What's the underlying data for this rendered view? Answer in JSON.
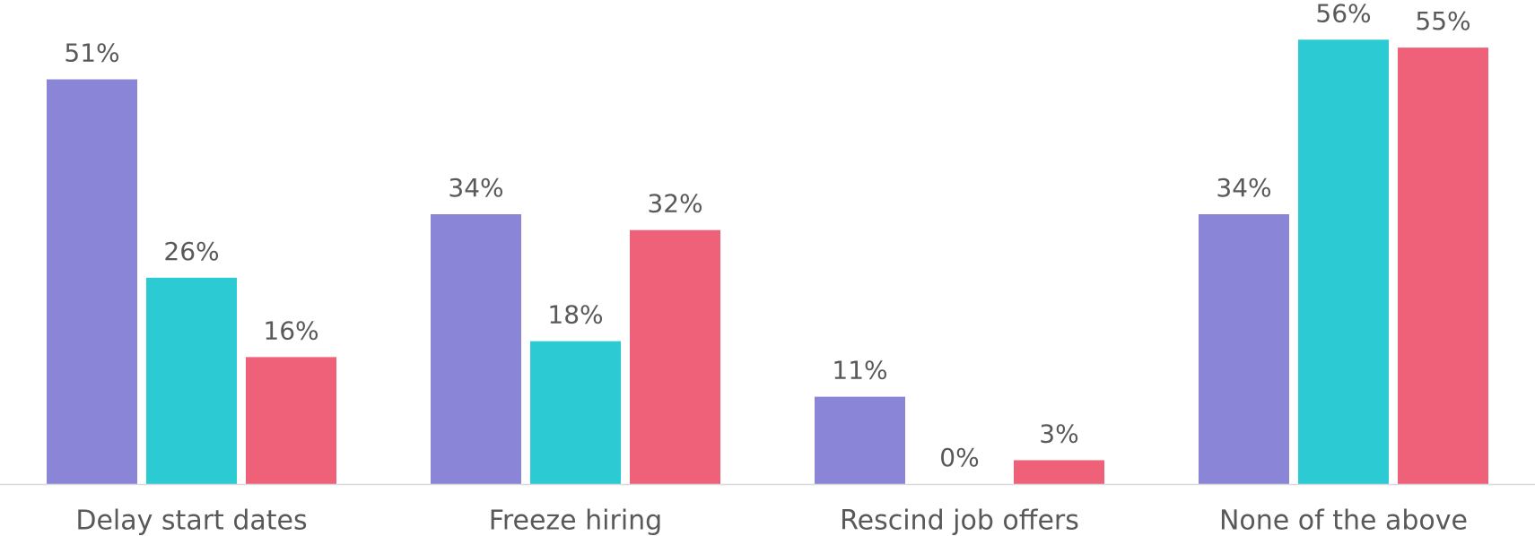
{
  "chart_data": {
    "type": "bar",
    "categories": [
      "Delay start dates",
      "Freeze hiring",
      "Rescind job offers",
      "None of the above"
    ],
    "series": [
      {
        "color": "#8b85d8",
        "values": [
          51,
          34,
          11,
          34
        ],
        "value_labels": [
          "51%",
          "34%",
          "11%",
          "34%"
        ]
      },
      {
        "color": "#2ccbd3",
        "values": [
          26,
          18,
          0,
          56
        ],
        "value_labels": [
          "26%",
          "18%",
          "0%",
          "56%"
        ]
      },
      {
        "color": "#ef6179",
        "values": [
          16,
          32,
          3,
          55
        ],
        "value_labels": [
          "16%",
          "32%",
          "3%",
          "55%"
        ]
      }
    ],
    "ylim": [
      0,
      61
    ]
  }
}
